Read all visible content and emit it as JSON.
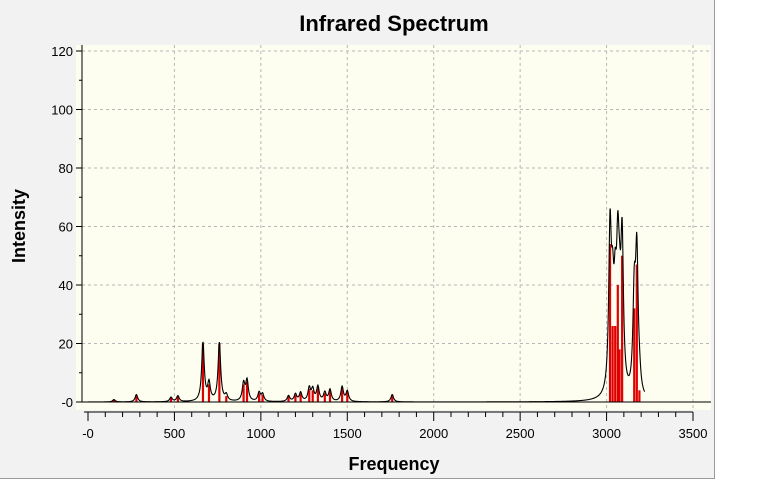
{
  "chart_data": {
    "type": "line",
    "title": "Infrared Spectrum",
    "xlabel": "Frequency",
    "ylabel": "Intensity",
    "xlim": [
      -100,
      3500
    ],
    "ylim": [
      0,
      120
    ],
    "grid": true,
    "x_ticks": [
      0,
      500,
      1000,
      1500,
      2000,
      2500,
      3000,
      3500
    ],
    "x_tick_labels": [
      "-0",
      "500",
      "1000",
      "1500",
      "2000",
      "2500",
      "3000",
      "3500"
    ],
    "y_ticks": [
      0,
      20,
      40,
      60,
      80,
      100,
      120
    ],
    "y_tick_labels": [
      "-0",
      "20",
      "40",
      "60",
      "80",
      "100",
      "120"
    ],
    "colors": {
      "plot_bg": "#fdfdf0",
      "spectrum_line": "#000000",
      "stick": "#e00000",
      "grid": "#b8b8b8"
    },
    "series": [
      {
        "x": [
          150,
          280,
          480,
          520,
          665,
          700,
          760,
          800,
          900,
          920,
          990,
          1010,
          1160,
          1200,
          1230,
          1280,
          1300,
          1330,
          1370,
          1400,
          1470,
          1500,
          1760,
          3020,
          3035,
          3050,
          3065,
          3075,
          3090,
          3160,
          3175,
          3190
        ],
        "values": [
          0.8,
          2.5,
          1.5,
          2,
          20,
          6,
          20,
          2,
          6,
          7,
          3,
          2.5,
          2,
          2.5,
          3,
          4.5,
          4,
          5,
          3,
          4,
          5,
          3.5,
          2.5,
          54,
          26,
          26,
          40,
          18,
          50,
          32,
          47,
          4
        ]
      }
    ]
  }
}
